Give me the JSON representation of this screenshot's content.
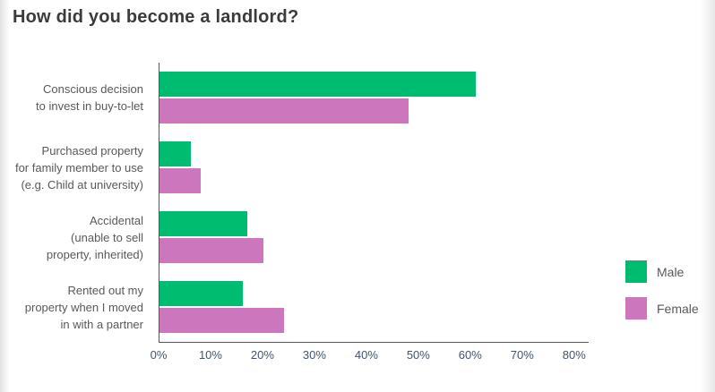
{
  "chart_data": {
    "type": "bar",
    "orientation": "horizontal",
    "title": "How did you become a landlord?",
    "categories": [
      "Conscious decision to invest in buy-to-let",
      "Purchased property for family member to use (e.g. Child at university)",
      "Accidental (unable to sell property, inherited)",
      "Rented out my property when I moved in with a partner"
    ],
    "category_lines": [
      [
        "Conscious decision",
        "to invest in buy-to-let"
      ],
      [
        "Purchased property",
        "for family member to use",
        "(e.g. Child at university)"
      ],
      [
        "Accidental",
        "(unable to sell",
        "property, inherited)"
      ],
      [
        "Rented out my",
        "property when I moved",
        "in with a partner"
      ]
    ],
    "series": [
      {
        "name": "Male",
        "color": "#00BC70",
        "values": [
          61,
          6,
          17,
          16
        ]
      },
      {
        "name": "Female",
        "color": "#CC76BD",
        "values": [
          48,
          8,
          20,
          24
        ]
      }
    ],
    "x_ticks": [
      {
        "label": "0%",
        "value": 0
      },
      {
        "label": "10%",
        "value": 10
      },
      {
        "label": "20%",
        "value": 20
      },
      {
        "label": "30%",
        "value": 30
      },
      {
        "label": "40%",
        "value": 40
      },
      {
        "label": "50%",
        "value": 50
      },
      {
        "label": "60%",
        "value": 60
      },
      {
        "label": "70%",
        "value": 70
      },
      {
        "label": "80%",
        "value": 80
      }
    ],
    "xlim": [
      0,
      82.8
    ],
    "grid": false,
    "legend_position": "right",
    "colors": {
      "axis": "#595959",
      "tick_label": "#44546A",
      "category_label": "#595959",
      "legend_label": "#595959",
      "title": "#3B3B3B"
    }
  }
}
